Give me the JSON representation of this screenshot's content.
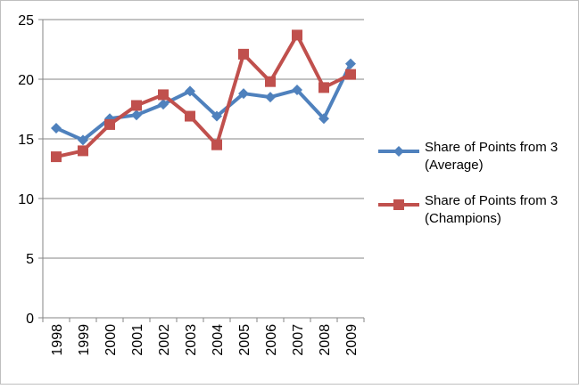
{
  "chart_data": {
    "type": "line",
    "x": [
      "1998",
      "1999",
      "2000",
      "2001",
      "2002",
      "2003",
      "2004",
      "2005",
      "2006",
      "2007",
      "2008",
      "2009"
    ],
    "series": [
      {
        "name": "Share of Points from 3 (Average)",
        "label_lines": [
          "Share of Points from 3",
          "(Average)"
        ],
        "color": "#4f81bd",
        "marker": "diamond",
        "values": [
          15.9,
          14.9,
          16.7,
          17.0,
          17.9,
          19.0,
          16.9,
          18.8,
          18.5,
          19.1,
          16.7,
          21.3
        ]
      },
      {
        "name": "Share of Points from 3 (Champions)",
        "label_lines": [
          "Share of Points from 3",
          "(Champions)"
        ],
        "color": "#c0504d",
        "marker": "square",
        "values": [
          13.5,
          14.0,
          16.2,
          17.8,
          18.7,
          16.9,
          14.5,
          22.1,
          19.8,
          23.7,
          19.3,
          20.4
        ]
      }
    ],
    "ylim": [
      0,
      25
    ],
    "yticks": [
      0,
      5,
      10,
      15,
      20,
      25
    ],
    "grid": true,
    "legend_position": "right"
  }
}
